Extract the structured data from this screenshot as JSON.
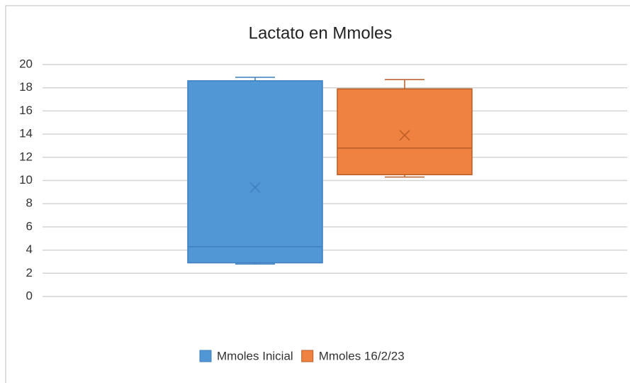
{
  "chart_data": {
    "type": "box",
    "title": "Lactato en Mmoles",
    "ylim": [
      0,
      20
    ],
    "yticks": [
      0,
      2,
      4,
      6,
      8,
      10,
      12,
      14,
      16,
      18,
      20
    ],
    "grid": true,
    "legend": "bottom",
    "series": [
      {
        "name": "Mmoles Inicial",
        "color": "#5197d6",
        "edge": "#3f7fbf",
        "min": 2.8,
        "q1": 2.9,
        "median": 4.3,
        "q3": 18.6,
        "max": 18.9,
        "mean": 9.4
      },
      {
        "name": "Mmoles 16/2/23",
        "color": "#ef8240",
        "edge": "#b95c25",
        "min": 10.3,
        "q1": 10.5,
        "median": 12.8,
        "q3": 17.9,
        "max": 18.7,
        "mean": 13.9
      }
    ]
  }
}
